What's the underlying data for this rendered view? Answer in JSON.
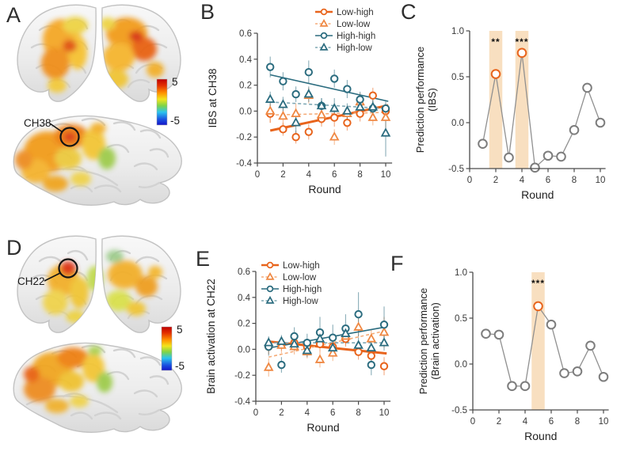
{
  "brain_panels": {
    "A": {
      "label": "A",
      "channel": "CH38",
      "colorbar_max": "5",
      "colorbar_min": "-5"
    },
    "D": {
      "label": "D",
      "channel": "CH22",
      "colorbar_max": "5",
      "colorbar_min": "-5"
    }
  },
  "colors": {
    "orange": "#E8641C",
    "orange_light": "#EF8843",
    "orange_dash": "#F5AC79",
    "teal": "#2B6C7F",
    "teal_dash": "#7FA8B4",
    "gray_point": "#7D7D7D",
    "gray_line": "#909090",
    "band": "#F8DFC0",
    "star": "#111111",
    "axis": "#4A4A4A"
  },
  "chart_data": [
    {
      "id": "B",
      "panel_label": "B",
      "type": "scatter",
      "xlabel": "Round",
      "ylabel": "IBS at CH38",
      "xlim": [
        0,
        10.5
      ],
      "ylim": [
        -0.4,
        0.6
      ],
      "xticks": [
        "0",
        "2",
        "4",
        "6",
        "8",
        "10"
      ],
      "yticks": [
        "-0.4",
        "-0.2",
        "0.0",
        "0.2",
        "0.4",
        "0.6"
      ],
      "x": [
        1,
        2,
        3,
        4,
        5,
        6,
        7,
        8,
        9,
        10
      ],
      "legend": [
        "Low-high",
        "Low-low",
        "High-high",
        "High-low"
      ],
      "legend_position": "top-right",
      "series": [
        {
          "name": "Low-high",
          "marker": "circle",
          "color": "#E8641C",
          "line_color": "#E8641C",
          "line_style": "solid",
          "line_width": 3,
          "values": [
            -0.02,
            -0.14,
            -0.2,
            -0.16,
            -0.06,
            -0.05,
            -0.09,
            -0.02,
            0.12,
            0.0
          ],
          "err": [
            0.07,
            0.05,
            0.05,
            0.06,
            0.06,
            0.07,
            0.06,
            0.06,
            0.06,
            0.06
          ],
          "trend": [
            -0.15,
            0.04
          ]
        },
        {
          "name": "Low-low",
          "marker": "triangle",
          "color": "#EF8843",
          "line_color": "#F5AC79",
          "line_style": "dashed",
          "line_width": 1.6,
          "values": [
            0.0,
            -0.04,
            -0.02,
            0.12,
            -0.03,
            -0.2,
            -0.02,
            0.07,
            -0.05,
            -0.05
          ],
          "err": [
            0.09,
            0.08,
            0.08,
            0.06,
            0.07,
            0.06,
            0.06,
            0.07,
            0.06,
            0.08
          ],
          "trend": [
            -0.03,
            -0.01
          ]
        },
        {
          "name": "High-high",
          "marker": "circle",
          "color": "#2B6C7F",
          "line_color": "#2B6C7F",
          "line_style": "solid",
          "line_width": 1.6,
          "values": [
            0.34,
            0.23,
            0.13,
            0.3,
            0.04,
            0.25,
            0.17,
            0.09,
            0.02,
            0.02
          ],
          "err": [
            0.08,
            0.07,
            0.06,
            0.09,
            0.06,
            0.07,
            0.07,
            0.06,
            0.06,
            0.06
          ],
          "trend": [
            0.28,
            0.08
          ]
        },
        {
          "name": "High-low",
          "marker": "triangle",
          "color": "#2B6C7F",
          "line_color": "#7FA8B4",
          "line_style": "dashed",
          "line_width": 1.6,
          "values": [
            0.09,
            0.05,
            -0.09,
            0.13,
            0.04,
            0.02,
            0.0,
            0.03,
            0.03,
            -0.17
          ],
          "err": [
            0.06,
            0.06,
            0.09,
            0.06,
            0.06,
            0.08,
            0.06,
            0.06,
            0.06,
            0.18
          ],
          "trend": [
            0.07,
            0.02
          ]
        }
      ]
    },
    {
      "id": "C",
      "panel_label": "C",
      "type": "line",
      "xlabel": "Round",
      "ylabel_lines": [
        "Prediction performance",
        "(IBS)"
      ],
      "xlim": [
        0,
        10.4
      ],
      "ylim": [
        -0.5,
        1.0
      ],
      "xticks": [
        "0",
        "2",
        "4",
        "6",
        "8",
        "10"
      ],
      "yticks": [
        "-0.5",
        "0.0",
        "0.5",
        "1.0"
      ],
      "x": [
        1,
        2,
        3,
        4,
        5,
        6,
        7,
        8,
        9,
        10
      ],
      "values": [
        -0.23,
        0.53,
        -0.38,
        0.76,
        -0.49,
        -0.36,
        -0.37,
        -0.08,
        0.38,
        0.0
      ],
      "highlight_rounds": [
        2,
        4
      ],
      "annotations": [
        {
          "x": 2,
          "y": 0.88,
          "text": "**"
        },
        {
          "x": 4,
          "y": 0.88,
          "text": "***"
        }
      ],
      "line_color": "#909090",
      "point_color": "#7D7D7D",
      "highlight_point_color": "#E8641C",
      "band_color": "#F8DFC0"
    },
    {
      "id": "E",
      "panel_label": "E",
      "type": "scatter",
      "xlabel": "Round",
      "ylabel": "Brain activation at CH22",
      "xlim": [
        0,
        10.5
      ],
      "ylim": [
        -0.4,
        0.6
      ],
      "xticks": [
        "0",
        "2",
        "4",
        "6",
        "8",
        "10"
      ],
      "yticks": [
        "-0.4",
        "-0.2",
        "0.0",
        "0.2",
        "0.4",
        "0.6"
      ],
      "x": [
        1,
        2,
        3,
        4,
        5,
        6,
        7,
        8,
        9,
        10
      ],
      "legend": [
        "Low-high",
        "Low-low",
        "High-high",
        "High-low"
      ],
      "legend_position": "top-left",
      "series": [
        {
          "name": "Low-high",
          "marker": "circle",
          "color": "#E8641C",
          "line_color": "#E8641C",
          "line_style": "solid",
          "line_width": 3,
          "values": [
            0.02,
            0.04,
            0.05,
            0.02,
            0.04,
            0.02,
            0.08,
            -0.02,
            -0.05,
            -0.13
          ],
          "err": [
            0.06,
            0.05,
            0.05,
            0.05,
            0.06,
            0.05,
            0.06,
            0.06,
            0.06,
            0.07
          ],
          "trend": [
            0.06,
            -0.03
          ]
        },
        {
          "name": "Low-low",
          "marker": "triangle",
          "color": "#EF8843",
          "line_color": "#F5AC79",
          "line_style": "dashed",
          "line_width": 1.6,
          "values": [
            -0.14,
            0.03,
            0.02,
            -0.02,
            -0.08,
            -0.03,
            0.1,
            0.17,
            0.08,
            0.13
          ],
          "err": [
            0.07,
            0.06,
            0.06,
            0.05,
            0.06,
            0.06,
            0.07,
            0.08,
            0.07,
            0.12
          ],
          "trend": [
            -0.06,
            0.14
          ]
        },
        {
          "name": "High-high",
          "marker": "circle",
          "color": "#2B6C7F",
          "line_color": "#2B6C7F",
          "line_style": "solid",
          "line_width": 1.6,
          "values": [
            0.02,
            -0.12,
            0.1,
            0.05,
            0.13,
            0.09,
            0.16,
            0.27,
            -0.12,
            0.19
          ],
          "err": [
            0.07,
            0.06,
            0.07,
            0.07,
            0.12,
            0.1,
            0.11,
            0.17,
            0.08,
            0.14
          ],
          "trend": [
            0.01,
            0.17
          ]
        },
        {
          "name": "High-low",
          "marker": "triangle",
          "color": "#2B6C7F",
          "line_color": "#7FA8B4",
          "line_style": "dashed",
          "line_width": 1.6,
          "values": [
            0.05,
            0.06,
            0.04,
            -0.01,
            0.08,
            0.01,
            0.12,
            0.03,
            0.01,
            0.05
          ],
          "err": [
            0.05,
            0.05,
            0.05,
            0.05,
            0.06,
            0.05,
            0.06,
            0.06,
            0.05,
            0.06
          ],
          "trend": [
            0.05,
            0.05
          ]
        }
      ]
    },
    {
      "id": "F",
      "panel_label": "F",
      "type": "line",
      "xlabel": "Round",
      "ylabel_lines": [
        "Prediction performance",
        "(Brain activation)"
      ],
      "xlim": [
        0,
        10.4
      ],
      "ylim": [
        -0.5,
        1.0
      ],
      "xticks": [
        "0",
        "2",
        "4",
        "6",
        "8",
        "10"
      ],
      "yticks": [
        "-0.5",
        "0.0",
        "0.5",
        "1.0"
      ],
      "x": [
        1,
        2,
        3,
        4,
        5,
        6,
        7,
        8,
        9,
        10
      ],
      "values": [
        0.33,
        0.32,
        -0.24,
        -0.24,
        0.63,
        0.43,
        -0.1,
        -0.08,
        0.2,
        -0.14
      ],
      "highlight_rounds": [
        5
      ],
      "annotations": [
        {
          "x": 5,
          "y": 0.88,
          "text": "***"
        }
      ],
      "line_color": "#909090",
      "point_color": "#7D7D7D",
      "highlight_point_color": "#E8641C",
      "band_color": "#F8DFC0"
    }
  ]
}
